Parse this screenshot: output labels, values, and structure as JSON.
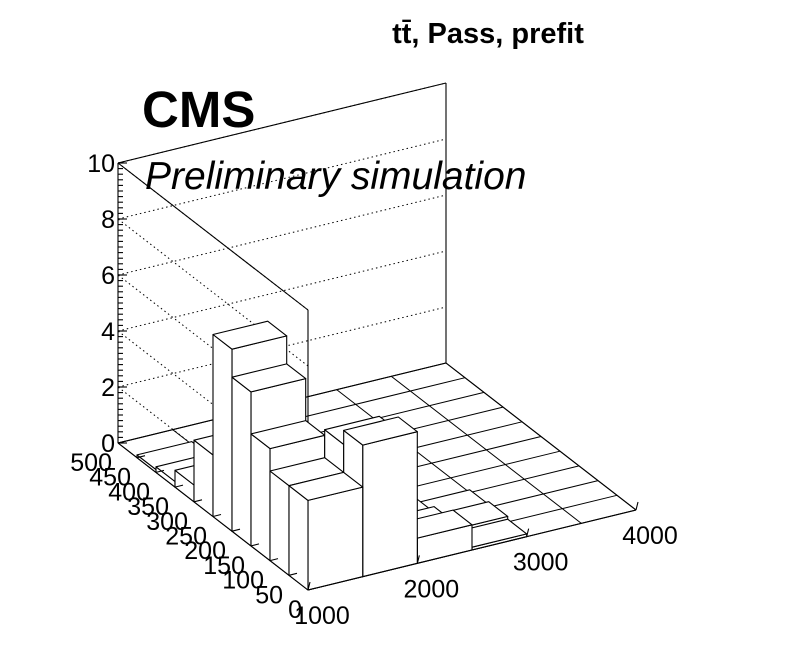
{
  "title": "tt̄, Pass, prefit",
  "labels": {
    "experiment": "CMS",
    "status": "Preliminary simulation"
  },
  "chart_data": {
    "type": "lego",
    "title": "tt̄, Pass, prefit",
    "xlabel": "",
    "ylabel": "",
    "zlabel": "",
    "x_bins": [
      "1000-1500",
      "1500-2000",
      "2000-2500",
      "2500-3000",
      "3000-3500",
      "3500-4000"
    ],
    "y_bins": [
      "0-50",
      "50-100",
      "100-150",
      "150-200",
      "200-250",
      "250-300",
      "300-350",
      "350-400",
      "400-450",
      "450-500"
    ],
    "values": [
      [
        3.2,
        4.7,
        0.9,
        0.1,
        0.0,
        0.0
      ],
      [
        3.2,
        4.2,
        0.5,
        0.2,
        0.0,
        0.0
      ],
      [
        4.0,
        2.8,
        0.3,
        0.1,
        0.0,
        0.0
      ],
      [
        5.5,
        1.5,
        0.2,
        0.0,
        0.0,
        0.0
      ],
      [
        6.5,
        0.8,
        0.1,
        0.0,
        0.0,
        0.0
      ],
      [
        2.2,
        0.3,
        0.1,
        0.0,
        0.0,
        0.0
      ],
      [
        0.6,
        0.1,
        0.0,
        0.0,
        0.0,
        0.0
      ],
      [
        0.2,
        0.1,
        0.0,
        0.0,
        0.0,
        0.0
      ],
      [
        0.1,
        0.0,
        0.0,
        0.0,
        0.0,
        0.0
      ],
      [
        0.0,
        0.0,
        0.0,
        0.0,
        0.0,
        0.0
      ]
    ],
    "xlim": [
      1000,
      4000
    ],
    "ylim": [
      0,
      500
    ],
    "zlim": [
      0,
      10
    ],
    "x_ticks": [
      "1000",
      "2000",
      "3000",
      "4000"
    ],
    "y_ticks": [
      "0",
      "50",
      "100",
      "150",
      "200",
      "250",
      "300",
      "350",
      "400",
      "450",
      "500"
    ],
    "z_ticks": [
      "0",
      "2",
      "4",
      "6",
      "8",
      "10"
    ],
    "grid": true,
    "legend": "none"
  }
}
